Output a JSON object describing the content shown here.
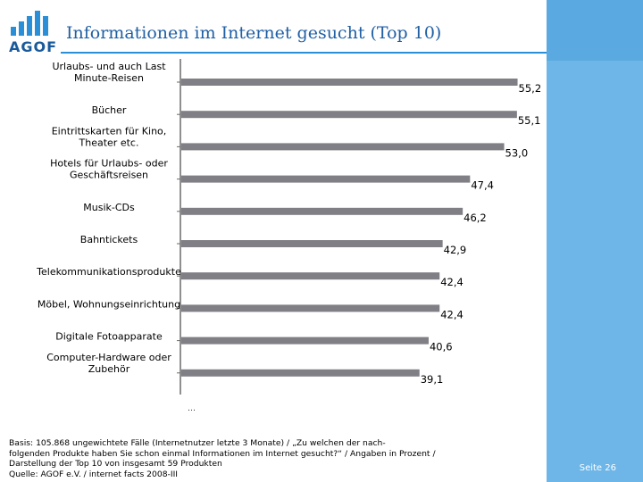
{
  "title": "Informationen im Internet gesucht (Top 10)",
  "logo": {
    "text": "AGOF"
  },
  "page": {
    "label": "Seite 26"
  },
  "colors": {
    "bar": "#7f7f85",
    "accent": "#2a8fd6",
    "sidebar": "#6eb6e8",
    "title": "#1f5fa3"
  },
  "chart_data": {
    "type": "bar",
    "orientation": "horizontal",
    "title": "Informationen im Internet gesucht (Top 10)",
    "xlabel": "",
    "ylabel": "",
    "xlim": [
      0,
      56
    ],
    "grid": false,
    "categories": [
      [
        "Urlaubs- und auch Last",
        "Minute-Reisen"
      ],
      [
        "Bücher"
      ],
      [
        "Eintrittskarten für Kino,",
        "Theater etc."
      ],
      [
        "Hotels für Urlaubs- oder",
        "Geschäftsreisen"
      ],
      [
        "Musik-CDs"
      ],
      [
        "Bahntickets"
      ],
      [
        "Telekommunikationsprodukte"
      ],
      [
        "Möbel, Wohnungseinrichtung"
      ],
      [
        "Digitale Fotoapparate"
      ],
      [
        "Computer-Hardware oder",
        "Zubehör"
      ]
    ],
    "values": [
      55.2,
      55.1,
      53.0,
      47.4,
      46.2,
      42.9,
      42.4,
      42.4,
      40.6,
      39.1
    ],
    "value_labels": [
      "55,2",
      "55,1",
      "53,0",
      "47,4",
      "46,2",
      "42,9",
      "42,4",
      "42,4",
      "40,6",
      "39,1"
    ],
    "ellipsis": "…"
  },
  "footnote": {
    "lines": [
      "Basis: 105.868 ungewichtete Fälle (Internetnutzer letzte 3 Monate) / „Zu welchen der nach-",
      "folgenden Produkte haben Sie schon einmal Informationen im Internet gesucht?“ / Angaben in Prozent /",
      "Darstellung der Top 10 von insgesamt 59 Produkten",
      "Quelle: AGOF e.V. / internet facts 2008-III"
    ]
  }
}
